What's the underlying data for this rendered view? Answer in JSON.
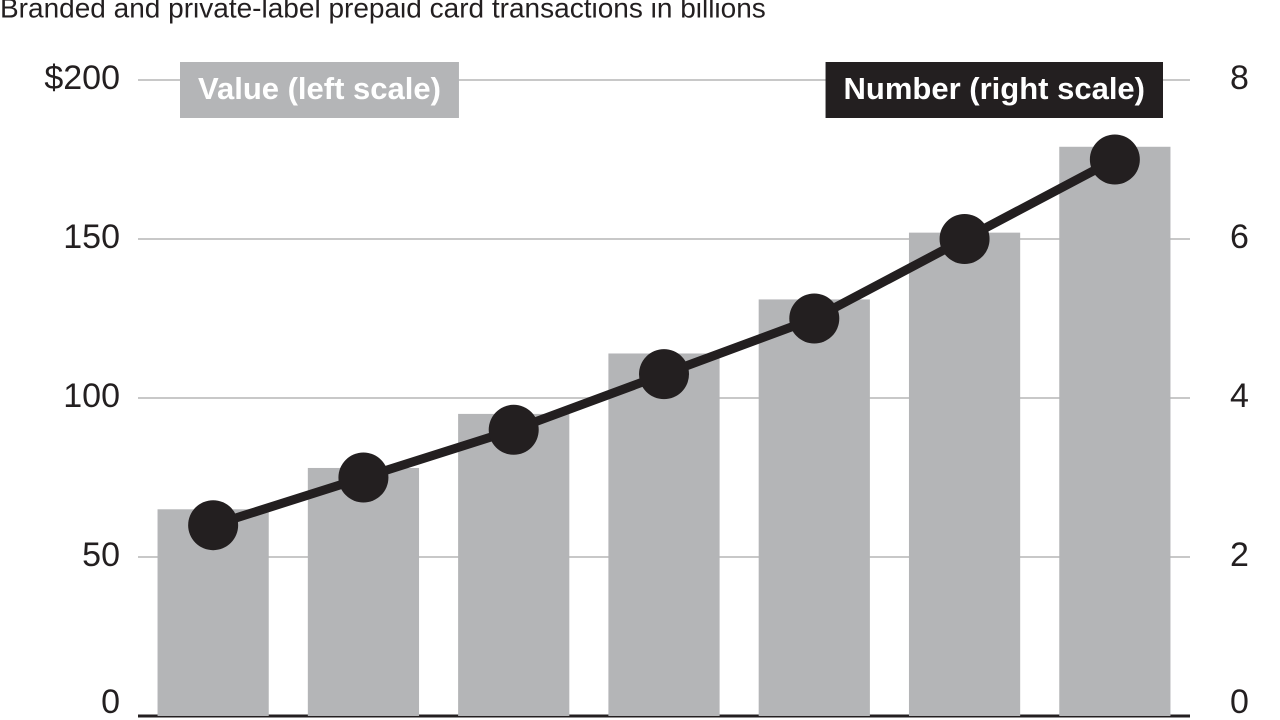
{
  "chart_data": {
    "type": "bar",
    "title": "Branded and private-label prepaid card transactions in billions",
    "categories": [
      null,
      null,
      null,
      null,
      null,
      null,
      null
    ],
    "series": [
      {
        "name": "Value (left scale)",
        "color": "#b4b5b7",
        "values": [
          65,
          78,
          95,
          114,
          131,
          152,
          179
        ]
      },
      {
        "name": "Number (right scale)",
        "color": "#231f20",
        "type": "line",
        "axis": "y2",
        "values": [
          2.4,
          3.0,
          3.6,
          4.3,
          5.0,
          6.0,
          7.0
        ]
      }
    ],
    "ylim": [
      0,
      200
    ],
    "yticks": [
      0,
      50,
      100,
      150,
      {
        "value": 200,
        "label": "$200"
      }
    ],
    "y2lim": [
      0,
      8
    ],
    "y2ticks": [
      0,
      2,
      4,
      6,
      8
    ],
    "grid": true
  }
}
